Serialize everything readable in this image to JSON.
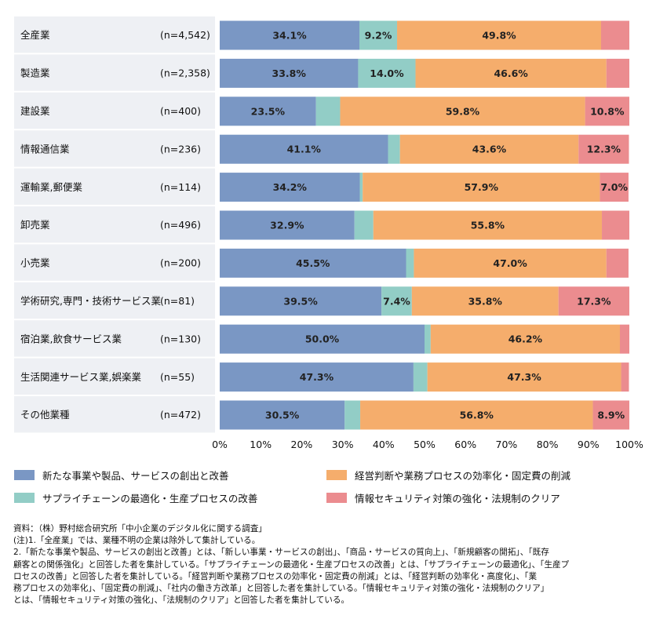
{
  "chart_data": {
    "type": "bar",
    "orientation": "horizontal",
    "stacked": true,
    "categories": [
      "全産業",
      "製造業",
      "建設業",
      "情報通信業",
      "運輸業,郵便業",
      "卸売業",
      "小売業",
      "学術研究,専門・技術サービス業",
      "宿泊業,飲食サービス業",
      "生活関連サービス業,娯楽業",
      "その他業種"
    ],
    "n_labels": [
      "(n=4,542)",
      "(n=2,358)",
      "(n=400)",
      "(n=236)",
      "(n=114)",
      "(n=496)",
      "(n=200)",
      "(n=81)",
      "(n=130)",
      "(n=55)",
      "(n=472)"
    ],
    "series": [
      {
        "name": "新たな事業や製品、サービスの創出と改善",
        "color": "#7a97c4",
        "values": [
          34.1,
          33.8,
          23.5,
          41.1,
          34.2,
          32.9,
          45.5,
          39.5,
          50.0,
          47.3,
          30.5
        ],
        "labels": [
          "34.1%",
          "33.8%",
          "23.5%",
          "41.1%",
          "34.2%",
          "32.9%",
          "45.5%",
          "39.5%",
          "50.0%",
          "47.3%",
          "30.5%"
        ]
      },
      {
        "name": "サプライチェーンの最適化・生産プロセスの改善",
        "color": "#92cdc6",
        "values": [
          9.2,
          14.0,
          5.9,
          2.9,
          0.7,
          4.6,
          1.9,
          7.4,
          1.5,
          3.4,
          3.8
        ],
        "labels": [
          "9.2%",
          "14.0%",
          "",
          "",
          "",
          "",
          "",
          "7.4%",
          "",
          "",
          ""
        ]
      },
      {
        "name": "経営判断や業務プロセスの効率化・固定費の削減",
        "color": "#f5ad6c",
        "values": [
          49.8,
          46.6,
          59.8,
          43.6,
          57.9,
          55.8,
          47.0,
          35.8,
          46.2,
          47.3,
          56.8
        ],
        "labels": [
          "49.8%",
          "46.6%",
          "59.8%",
          "43.6%",
          "57.9%",
          "55.8%",
          "47.0%",
          "35.8%",
          "46.2%",
          "47.3%",
          "56.8%"
        ]
      },
      {
        "name": "情報セキュリティ対策の強化・法規制のクリア",
        "color": "#eb8c8f",
        "values": [
          6.9,
          5.6,
          10.8,
          12.3,
          7.0,
          6.7,
          5.4,
          17.3,
          2.3,
          1.9,
          8.9
        ],
        "labels": [
          "",
          "",
          "10.8%",
          "12.3%",
          "7.0%",
          "",
          "",
          "17.3%",
          "",
          "",
          "8.9%"
        ]
      }
    ],
    "xlim": [
      0,
      100
    ],
    "x_ticks": [
      "0%",
      "10%",
      "20%",
      "30%",
      "40%",
      "50%",
      "60%",
      "70%",
      "80%",
      "90%",
      "100%"
    ],
    "legend_position": "bottom"
  },
  "notes": [
    "資料：（株）野村総合研究所「中小企業のデジタル化に関する調査」",
    "(注)1.「全産業」では、業種不明の企業は除外して集計している。",
    "2.「新たな事業や製品、サービスの創出と改善」とは、「新しい事業・サービスの創出」、「商品・サービスの質向上」、「新規顧客の開拓」、「既存",
    "顧客との関係強化」と回答した者を集計している。「サプライチェーンの最適化・生産プロセスの改善」とは、「サプライチェーンの最適化」、「生産プ",
    "ロセスの改善」と回答した者を集計している。「経営判断や業務プロセスの効率化・固定費の削減」とは、「経営判断の効率化・高度化」、「業",
    "務プロセスの効率化」、「固定費の削減」、「社内の働き方改革」と回答した者を集計している。「情報セキュリティ対策の強化・法規制のクリア」",
    "とは、「情報セキュリティ対策の強化」、「法規制のクリア」と回答した者を集計している。"
  ]
}
